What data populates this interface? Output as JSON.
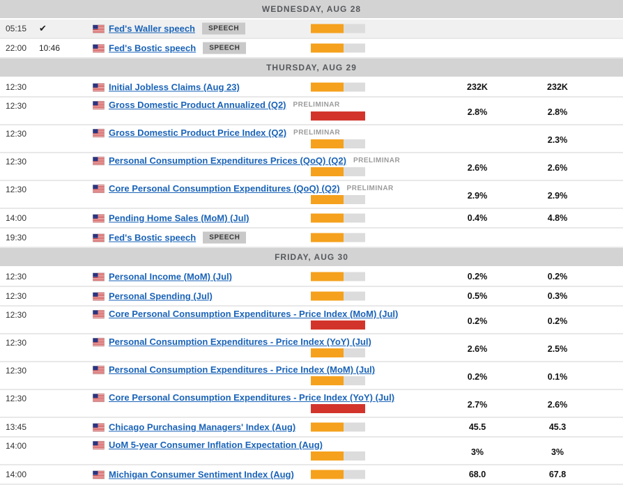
{
  "colors": {
    "volatility_medium": "#f5a11d",
    "volatility_high": "#d2342c",
    "bar_track": "#dcdcdc",
    "header_bg": "#d3d3d3",
    "header_text": "#55585c",
    "link_blue": "#1a63b8",
    "past_row_bg": "#f0f0f0",
    "badge_bg": "#c9c9c9"
  },
  "icons": {
    "flag": "us-flag-icon",
    "check": "check-icon",
    "check_glyph": "✔"
  },
  "volatility_levels": {
    "medium": {
      "pct": 60,
      "color_key": "volatility_medium"
    },
    "high": {
      "pct": 100,
      "color_key": "volatility_high"
    }
  },
  "sections": [
    {
      "date": "WEDNESDAY, AUG 28",
      "events": [
        {
          "time": "05:15",
          "status": "done",
          "country": "US",
          "title": "Fed's Waller speech",
          "badge": {
            "label": "SPEECH",
            "type": "chip"
          },
          "volatility": "medium",
          "consensus": "",
          "previous": "",
          "past": true,
          "two_line": false
        },
        {
          "time": "22:00",
          "countdown": "10:46",
          "country": "US",
          "title": "Fed's Bostic speech",
          "badge": {
            "label": "SPEECH",
            "type": "chip"
          },
          "volatility": "medium",
          "consensus": "",
          "previous": "",
          "past": false,
          "two_line": false
        }
      ]
    },
    {
      "date": "THURSDAY, AUG 29",
      "events": [
        {
          "time": "12:30",
          "country": "US",
          "title": "Initial Jobless Claims (Aug 23)",
          "volatility": "medium",
          "consensus": "232K",
          "previous": "232K",
          "two_line": false
        },
        {
          "time": "12:30",
          "country": "US",
          "title": "Gross Domestic Product Annualized (Q2)",
          "badge": {
            "label": "PRELIMINAR",
            "type": "text"
          },
          "volatility": "high",
          "consensus": "2.8%",
          "previous": "2.8%",
          "two_line": true
        },
        {
          "time": "12:30",
          "country": "US",
          "title": "Gross Domestic Product Price Index (Q2)",
          "badge": {
            "label": "PRELIMINAR",
            "type": "text"
          },
          "volatility": "medium",
          "consensus": "",
          "previous": "2.3%",
          "two_line": true
        },
        {
          "time": "12:30",
          "country": "US",
          "title": "Personal Consumption Expenditures Prices (QoQ) (Q2)",
          "badge": {
            "label": "PRELIMINAR",
            "type": "text"
          },
          "volatility": "medium",
          "consensus": "2.6%",
          "previous": "2.6%",
          "two_line": true
        },
        {
          "time": "12:30",
          "country": "US",
          "title": "Core Personal Consumption Expenditures (QoQ) (Q2)",
          "badge": {
            "label": "PRELIMINAR",
            "type": "text"
          },
          "volatility": "medium",
          "consensus": "2.9%",
          "previous": "2.9%",
          "two_line": true
        },
        {
          "time": "14:00",
          "country": "US",
          "title": "Pending Home Sales (MoM) (Jul)",
          "volatility": "medium",
          "consensus": "0.4%",
          "previous": "4.8%",
          "two_line": false
        },
        {
          "time": "19:30",
          "country": "US",
          "title": "Fed's Bostic speech",
          "badge": {
            "label": "SPEECH",
            "type": "chip"
          },
          "volatility": "medium",
          "consensus": "",
          "previous": "",
          "two_line": false
        }
      ]
    },
    {
      "date": "FRIDAY, AUG 30",
      "events": [
        {
          "time": "12:30",
          "country": "US",
          "title": "Personal Income (MoM) (Jul)",
          "volatility": "medium",
          "consensus": "0.2%",
          "previous": "0.2%",
          "two_line": false
        },
        {
          "time": "12:30",
          "country": "US",
          "title": "Personal Spending (Jul)",
          "volatility": "medium",
          "consensus": "0.5%",
          "previous": "0.3%",
          "two_line": false
        },
        {
          "time": "12:30",
          "country": "US",
          "title": "Core Personal Consumption Expenditures - Price Index (MoM) (Jul)",
          "volatility": "high",
          "consensus": "0.2%",
          "previous": "0.2%",
          "two_line": true
        },
        {
          "time": "12:30",
          "country": "US",
          "title": "Personal Consumption Expenditures - Price Index (YoY) (Jul)",
          "volatility": "medium",
          "consensus": "2.6%",
          "previous": "2.5%",
          "two_line": true
        },
        {
          "time": "12:30",
          "country": "US",
          "title": "Personal Consumption Expenditures - Price Index (MoM) (Jul)",
          "volatility": "medium",
          "consensus": "0.2%",
          "previous": "0.1%",
          "two_line": true
        },
        {
          "time": "12:30",
          "country": "US",
          "title": "Core Personal Consumption Expenditures - Price Index (YoY) (Jul)",
          "volatility": "high",
          "consensus": "2.7%",
          "previous": "2.6%",
          "two_line": true
        },
        {
          "time": "13:45",
          "country": "US",
          "title": "Chicago Purchasing Managers' Index (Aug)",
          "volatility": "medium",
          "consensus": "45.5",
          "previous": "45.3",
          "two_line": false
        },
        {
          "time": "14:00",
          "country": "US",
          "title": "UoM 5-year Consumer Inflation Expectation (Aug)",
          "volatility": "medium",
          "consensus": "3%",
          "previous": "3%",
          "two_line": true
        },
        {
          "time": "14:00",
          "country": "US",
          "title": "Michigan Consumer Sentiment Index (Aug)",
          "volatility": "medium",
          "consensus": "68.0",
          "previous": "67.8",
          "two_line": false
        }
      ]
    }
  ]
}
